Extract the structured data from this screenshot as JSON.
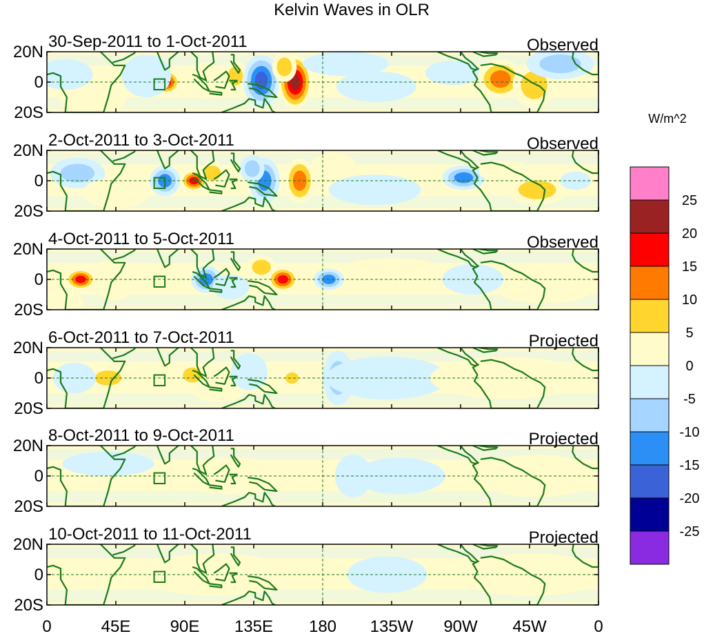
{
  "chart_data": {
    "type": "heatmap",
    "title": "Kelvin Waves in OLR",
    "units": "W/m^2",
    "x_ticks": [
      "0",
      "45E",
      "90E",
      "135E",
      "180",
      "135W",
      "90W",
      "45W",
      "0"
    ],
    "x_tick_lon": [
      0,
      45,
      90,
      135,
      180,
      225,
      270,
      315,
      360
    ],
    "xlim": [
      0,
      360
    ],
    "y_ticks": [
      "20N",
      "0",
      "20S"
    ],
    "y_tick_lat": [
      20,
      0,
      -20
    ],
    "ylim": [
      -20,
      20
    ],
    "reference_box": {
      "lon": [
        70,
        77
      ],
      "lat": [
        -5,
        2
      ]
    },
    "colorbar": {
      "levels": [
        "25",
        "20",
        "15",
        "10",
        "5",
        "0",
        "-5",
        "-10",
        "-15",
        "-20",
        "-25"
      ],
      "colors": [
        "#ff7fc8",
        "#9b2222",
        "#ff0000",
        "#ff7a00",
        "#ffd52e",
        "#fffbcb",
        "#d4f2ff",
        "#a6d6ff",
        "#2b8ff5",
        "#3c62d8",
        "#000096",
        "#8a2be2"
      ]
    },
    "panels": [
      {
        "label": "30-Sep-2011 to 1-Oct-2011",
        "status": "Observed",
        "anomalies": [
          {
            "lon": 78,
            "lat": 0,
            "value": 18,
            "w": 9,
            "h": 8
          },
          {
            "lon": 65,
            "lat": 4,
            "value": -4,
            "w": 16,
            "h": 14
          },
          {
            "lon": 104,
            "lat": 1,
            "value": 5,
            "w": 10,
            "h": 12
          },
          {
            "lon": 123,
            "lat": 4,
            "value": 6,
            "w": 8,
            "h": 10
          },
          {
            "lon": 140,
            "lat": 1,
            "value": -19,
            "w": 12,
            "h": 17
          },
          {
            "lon": 162,
            "lat": 0,
            "value": 24,
            "w": 11,
            "h": 18
          },
          {
            "lon": 155,
            "lat": 10,
            "value": 8,
            "w": 8,
            "h": 10
          },
          {
            "lon": 195,
            "lat": 12,
            "value": -4,
            "w": 28,
            "h": 8
          },
          {
            "lon": 215,
            "lat": -3,
            "value": -4,
            "w": 26,
            "h": 10
          },
          {
            "lon": 265,
            "lat": 6,
            "value": -4,
            "w": 18,
            "h": 8
          },
          {
            "lon": 296,
            "lat": 2,
            "value": 12,
            "w": 15,
            "h": 13
          },
          {
            "lon": 318,
            "lat": -2,
            "value": 6,
            "w": 14,
            "h": 15
          },
          {
            "lon": 335,
            "lat": 12,
            "value": -6,
            "w": 22,
            "h": 10
          },
          {
            "lon": 30,
            "lat": -10,
            "value": 3,
            "w": 22,
            "h": 12
          },
          {
            "lon": 12,
            "lat": 5,
            "value": -3,
            "w": 18,
            "h": 10
          }
        ]
      },
      {
        "label": "2-Oct-2011 to 3-Oct-2011",
        "status": "Observed",
        "anomalies": [
          {
            "lon": 77,
            "lat": 0,
            "value": -14,
            "w": 10,
            "h": 10
          },
          {
            "lon": 96,
            "lat": 0,
            "value": 17,
            "w": 9,
            "h": 7
          },
          {
            "lon": 108,
            "lat": 5,
            "value": 6,
            "w": 9,
            "h": 8
          },
          {
            "lon": 142,
            "lat": 0,
            "value": -15,
            "w": 10,
            "h": 15
          },
          {
            "lon": 134,
            "lat": 8,
            "value": -6,
            "w": 8,
            "h": 9
          },
          {
            "lon": 165,
            "lat": 0,
            "value": 14,
            "w": 10,
            "h": 15
          },
          {
            "lon": 187,
            "lat": 12,
            "value": 5,
            "w": 14,
            "h": 6
          },
          {
            "lon": 214,
            "lat": -6,
            "value": -4,
            "w": 30,
            "h": 10
          },
          {
            "lon": 272,
            "lat": 2,
            "value": -12,
            "w": 14,
            "h": 8
          },
          {
            "lon": 300,
            "lat": 6,
            "value": 5,
            "w": 18,
            "h": 7
          },
          {
            "lon": 320,
            "lat": -6,
            "value": 7,
            "w": 20,
            "h": 10
          },
          {
            "lon": 345,
            "lat": 0,
            "value": -5,
            "w": 10,
            "h": 6
          },
          {
            "lon": 20,
            "lat": 5,
            "value": -6,
            "w": 18,
            "h": 10
          },
          {
            "lon": 45,
            "lat": -8,
            "value": 4,
            "w": 22,
            "h": 10
          }
        ]
      },
      {
        "label": "4-Oct-2011 to 5-Oct-2011",
        "status": "Observed",
        "anomalies": [
          {
            "lon": 22,
            "lat": 0,
            "value": 18,
            "w": 10,
            "h": 7
          },
          {
            "lon": 44,
            "lat": 0,
            "value": 5,
            "w": 14,
            "h": 14
          },
          {
            "lon": 104,
            "lat": 0,
            "value": -14,
            "w": 10,
            "h": 9
          },
          {
            "lon": 120,
            "lat": -5,
            "value": -4,
            "w": 12,
            "h": 8
          },
          {
            "lon": 140,
            "lat": 8,
            "value": 6,
            "w": 10,
            "h": 8
          },
          {
            "lon": 154,
            "lat": 0,
            "value": 16,
            "w": 10,
            "h": 8
          },
          {
            "lon": 184,
            "lat": 0,
            "value": -12,
            "w": 10,
            "h": 7
          },
          {
            "lon": 205,
            "lat": 0,
            "value": 4,
            "w": 8,
            "h": 8
          },
          {
            "lon": 225,
            "lat": 8,
            "value": 4,
            "w": 30,
            "h": 6
          },
          {
            "lon": 278,
            "lat": 0,
            "value": -3,
            "w": 20,
            "h": 10
          },
          {
            "lon": 325,
            "lat": -8,
            "value": 5,
            "w": 30,
            "h": 8
          },
          {
            "lon": 10,
            "lat": -15,
            "value": 5,
            "w": 14,
            "h": 6
          }
        ]
      },
      {
        "label": "6-Oct-2011 to 7-Oct-2011",
        "status": "Projected",
        "anomalies": [
          {
            "lon": 40,
            "lat": 0,
            "value": 7,
            "w": 14,
            "h": 8
          },
          {
            "lon": 18,
            "lat": 0,
            "value": -4,
            "w": 14,
            "h": 10
          },
          {
            "lon": 95,
            "lat": 2,
            "value": 6,
            "w": 10,
            "h": 8
          },
          {
            "lon": 112,
            "lat": -10,
            "value": 4,
            "w": 16,
            "h": 6
          },
          {
            "lon": 132,
            "lat": 4,
            "value": -5,
            "w": 12,
            "h": 12
          },
          {
            "lon": 160,
            "lat": 0,
            "value": 7,
            "w": 7,
            "h": 6
          },
          {
            "lon": 190,
            "lat": 0,
            "value": -6,
            "w": 10,
            "h": 18
          },
          {
            "lon": 222,
            "lat": 0,
            "value": -3,
            "w": 40,
            "h": 14
          },
          {
            "lon": 300,
            "lat": 0,
            "value": 3,
            "w": 50,
            "h": 14
          }
        ]
      },
      {
        "label": "8-Oct-2011 to 9-Oct-2011",
        "status": "Projected",
        "anomalies": [
          {
            "lon": 200,
            "lat": 0,
            "value": -4,
            "w": 12,
            "h": 14
          },
          {
            "lon": 230,
            "lat": 0,
            "value": -3,
            "w": 30,
            "h": 12
          },
          {
            "lon": 120,
            "lat": 0,
            "value": 2,
            "w": 40,
            "h": 12
          },
          {
            "lon": 320,
            "lat": 0,
            "value": 2,
            "w": 40,
            "h": 14
          },
          {
            "lon": 40,
            "lat": 8,
            "value": -2,
            "w": 30,
            "h": 8
          }
        ]
      },
      {
        "label": "10-Oct-2011 to 11-Oct-2011",
        "status": "Projected",
        "anomalies": [
          {
            "lon": 213,
            "lat": 0,
            "value": -6,
            "w": 6,
            "h": 6
          },
          {
            "lon": 222,
            "lat": 0,
            "value": -3,
            "w": 26,
            "h": 12
          },
          {
            "lon": 110,
            "lat": 0,
            "value": 2,
            "w": 50,
            "h": 14
          },
          {
            "lon": 315,
            "lat": 0,
            "value": 2,
            "w": 50,
            "h": 14
          }
        ]
      }
    ]
  }
}
